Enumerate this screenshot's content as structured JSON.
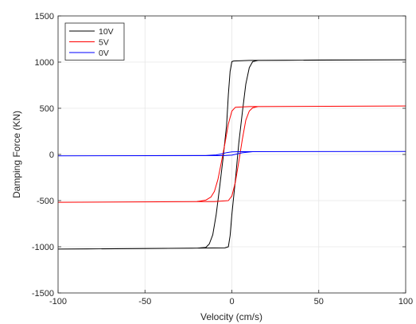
{
  "chart_data": {
    "type": "line",
    "title": "",
    "xlabel": "Velocity (cm/s)",
    "ylabel": "Damping Force (KN)",
    "xlim": [
      -100,
      100
    ],
    "ylim": [
      -1500,
      1500
    ],
    "xticks": [
      -100,
      -50,
      0,
      50,
      100
    ],
    "yticks": [
      -1500,
      -1000,
      -500,
      0,
      500,
      1000,
      1500
    ],
    "xtick_labels": [
      "-100",
      "-50",
      "0",
      "50",
      "100"
    ],
    "ytick_labels": [
      "-1500",
      "-1000",
      "-500",
      "0",
      "500",
      "1000",
      "1500"
    ],
    "grid": true,
    "legend_position": "top-left",
    "series": [
      {
        "name": "10V",
        "color": "#000000",
        "loop": [
          [
            -100,
            -1025
          ],
          [
            -20,
            -1015
          ],
          [
            -15,
            -1008
          ],
          [
            -13,
            -970
          ],
          [
            -11,
            -870
          ],
          [
            -9,
            -650
          ],
          [
            -7,
            -350
          ],
          [
            -5,
            -30
          ],
          [
            -3,
            320
          ],
          [
            -2,
            650
          ],
          [
            -1,
            900
          ],
          [
            0,
            1005
          ],
          [
            1,
            1012
          ],
          [
            10,
            1018
          ],
          [
            50,
            1022
          ],
          [
            100,
            1025
          ],
          [
            15,
            1018
          ],
          [
            12,
            1005
          ],
          [
            10,
            940
          ],
          [
            8,
            760
          ],
          [
            6,
            450
          ],
          [
            4,
            120
          ],
          [
            2,
            -280
          ],
          [
            0,
            -650
          ],
          [
            -1,
            -880
          ],
          [
            -2,
            -1000
          ],
          [
            -4,
            -1012
          ],
          [
            -50,
            -1020
          ],
          [
            -100,
            -1025
          ]
        ]
      },
      {
        "name": "5V",
        "color": "#ff0000",
        "loop": [
          [
            -100,
            -518
          ],
          [
            -20,
            -510
          ],
          [
            -15,
            -495
          ],
          [
            -12,
            -460
          ],
          [
            -10,
            -400
          ],
          [
            -8,
            -270
          ],
          [
            -6,
            -80
          ],
          [
            -4,
            120
          ],
          [
            -2,
            330
          ],
          [
            0,
            470
          ],
          [
            2,
            510
          ],
          [
            10,
            518
          ],
          [
            100,
            525
          ],
          [
            15,
            518
          ],
          [
            12,
            505
          ],
          [
            10,
            470
          ],
          [
            8,
            370
          ],
          [
            6,
            160
          ],
          [
            4,
            -80
          ],
          [
            2,
            -300
          ],
          [
            0,
            -450
          ],
          [
            -2,
            -500
          ],
          [
            -10,
            -510
          ],
          [
            -100,
            -518
          ]
        ]
      },
      {
        "name": "0V",
        "color": "#0000ff",
        "loop": [
          [
            -100,
            -15
          ],
          [
            -15,
            -12
          ],
          [
            -9,
            -5
          ],
          [
            -6,
            5
          ],
          [
            -3,
            20
          ],
          [
            0,
            28
          ],
          [
            5,
            30
          ],
          [
            100,
            32
          ],
          [
            12,
            30
          ],
          [
            6,
            18
          ],
          [
            3,
            5
          ],
          [
            0,
            -8
          ],
          [
            -5,
            -13
          ],
          [
            -100,
            -15
          ]
        ]
      }
    ]
  }
}
